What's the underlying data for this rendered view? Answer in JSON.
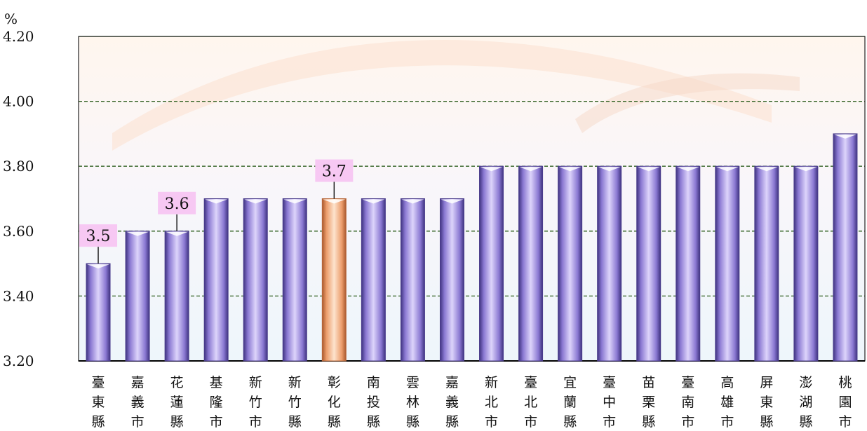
{
  "chart_data": {
    "type": "bar",
    "unit_label": "%",
    "y_tick_labels": [
      "4.20",
      "4.00",
      "3.80",
      "3.60",
      "3.40",
      "3.20"
    ],
    "ylim": [
      3.2,
      4.2
    ],
    "y_ticks": [
      4.2,
      4.0,
      3.8,
      3.6,
      3.4,
      3.2
    ],
    "grid": true,
    "categories": [
      "臺東縣",
      "嘉義市",
      "花蓮縣",
      "基隆市",
      "新竹市",
      "新竹縣",
      "彰化縣",
      "南投縣",
      "雲林縣",
      "嘉義縣",
      "新北市",
      "臺北市",
      "宜蘭縣",
      "臺中市",
      "苗栗縣",
      "臺南市",
      "高雄市",
      "屏東縣",
      "澎湖縣",
      "桃園市"
    ],
    "values": [
      3.5,
      3.6,
      3.6,
      3.7,
      3.7,
      3.7,
      3.7,
      3.7,
      3.7,
      3.7,
      3.8,
      3.8,
      3.8,
      3.8,
      3.8,
      3.8,
      3.8,
      3.8,
      3.8,
      3.9
    ],
    "highlight_category": "彰化縣",
    "data_labels": [
      {
        "category": "臺東縣",
        "text": "3.5"
      },
      {
        "category": "花蓮縣",
        "text": "3.6"
      },
      {
        "category": "彰化縣",
        "text": "3.7"
      }
    ],
    "colors": {
      "bar": "#b9a9ef",
      "bar_dark": "#4a3c8c",
      "highlight_bar": "#f6bd93",
      "highlight_dark": "#b8673a",
      "grid": "#2f5f1f",
      "label_box": "#f7c8f3"
    }
  }
}
